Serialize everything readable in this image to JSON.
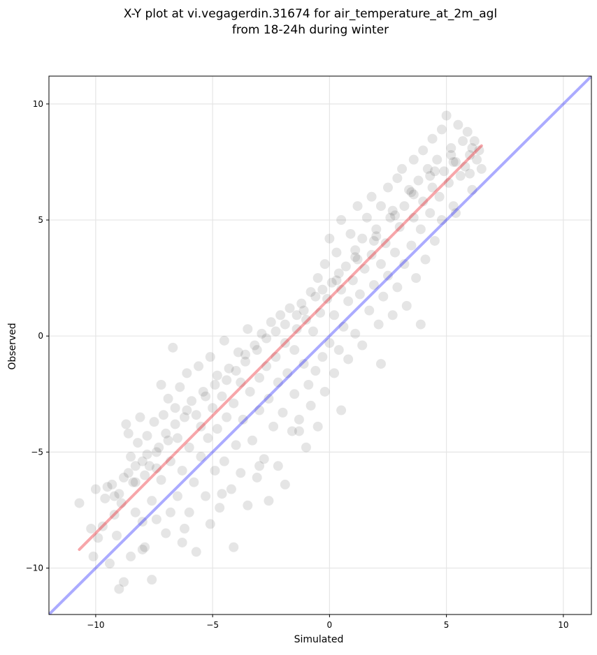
{
  "chart_data": {
    "type": "scatter",
    "title": "X-Y plot at vi.vegagerdin.31674 for air_temperature_at_2m_agl",
    "subtitle": "from 18-24h during winter",
    "xlabel": "Simulated",
    "ylabel": "Observed",
    "xlim": [
      -12,
      11.2
    ],
    "ylim": [
      -12,
      11.2
    ],
    "xticks": [
      -10,
      -5,
      0,
      5,
      10
    ],
    "yticks": [
      -10,
      -5,
      0,
      5,
      10
    ],
    "xtick_labels": [
      "−10",
      "−5",
      "0",
      "5",
      "10"
    ],
    "ytick_labels": [
      "−10",
      "−5",
      "0",
      "5",
      "10"
    ],
    "grid": true,
    "colors": {
      "points": "#000000",
      "identity_line": "#0000ff",
      "fit_line": "#e8000b"
    },
    "series": [
      {
        "type": "scatter",
        "points": [
          [
            -10.7,
            -7.2
          ],
          [
            -10.2,
            -8.3
          ],
          [
            -10.1,
            -9.5
          ],
          [
            -10.0,
            -6.6
          ],
          [
            -9.9,
            -8.7
          ],
          [
            -9.7,
            -8.2
          ],
          [
            -9.5,
            -6.5
          ],
          [
            -9.4,
            -9.8
          ],
          [
            -9.3,
            -6.4
          ],
          [
            -9.2,
            -7.7
          ],
          [
            -9.1,
            -8.6
          ],
          [
            -9.0,
            -6.8
          ],
          [
            -9.0,
            -10.9
          ],
          [
            -8.9,
            -7.2
          ],
          [
            -8.8,
            -6.1
          ],
          [
            -8.8,
            -10.6
          ],
          [
            -8.7,
            -3.8
          ],
          [
            -8.6,
            -4.2
          ],
          [
            -8.5,
            -5.2
          ],
          [
            -8.5,
            -9.5
          ],
          [
            -8.4,
            -6.3
          ],
          [
            -8.3,
            -5.6
          ],
          [
            -8.3,
            -7.6
          ],
          [
            -8.2,
            -4.6
          ],
          [
            -8.1,
            -3.5
          ],
          [
            -8.0,
            -5.4
          ],
          [
            -8.0,
            -8.0
          ],
          [
            -7.9,
            -6.0
          ],
          [
            -7.9,
            -9.1
          ],
          [
            -7.8,
            -4.3
          ],
          [
            -7.7,
            -5.6
          ],
          [
            -7.6,
            -7.1
          ],
          [
            -7.6,
            -10.5
          ],
          [
            -7.5,
            -3.7
          ],
          [
            -7.4,
            -5.0
          ],
          [
            -7.4,
            -7.9
          ],
          [
            -7.3,
            -4.8
          ],
          [
            -7.2,
            -2.1
          ],
          [
            -7.2,
            -6.2
          ],
          [
            -7.1,
            -3.4
          ],
          [
            -7.0,
            -4.2
          ],
          [
            -7.0,
            -8.5
          ],
          [
            -6.9,
            -2.7
          ],
          [
            -6.8,
            -5.4
          ],
          [
            -6.8,
            -7.6
          ],
          [
            -6.7,
            -0.5
          ],
          [
            -6.6,
            -3.1
          ],
          [
            -6.5,
            -4.4
          ],
          [
            -6.5,
            -6.9
          ],
          [
            -6.4,
            -2.2
          ],
          [
            -6.3,
            -5.8
          ],
          [
            -6.3,
            -8.9
          ],
          [
            -6.2,
            -3.5
          ],
          [
            -6.1,
            -1.6
          ],
          [
            -6.0,
            -4.8
          ],
          [
            -6.0,
            -7.6
          ],
          [
            -5.9,
            -2.8
          ],
          [
            -5.8,
            -6.3
          ],
          [
            -5.7,
            -9.3
          ],
          [
            -5.6,
            -1.3
          ],
          [
            -5.5,
            -3.9
          ],
          [
            -5.5,
            -5.2
          ],
          [
            -5.4,
            -2.4
          ],
          [
            -5.3,
            -6.9
          ],
          [
            -5.2,
            -4.4
          ],
          [
            -5.1,
            -0.9
          ],
          [
            -5.1,
            -8.1
          ],
          [
            -5.0,
            -3.1
          ],
          [
            -4.9,
            -5.8
          ],
          [
            -4.8,
            -1.7
          ],
          [
            -4.8,
            -4.0
          ],
          [
            -4.7,
            -7.4
          ],
          [
            -4.6,
            -2.6
          ],
          [
            -4.5,
            -0.2
          ],
          [
            -4.5,
            -5.4
          ],
          [
            -4.4,
            -3.5
          ],
          [
            -4.3,
            -1.4
          ],
          [
            -4.2,
            -6.6
          ],
          [
            -4.1,
            -2.9
          ],
          [
            -4.1,
            -9.1
          ],
          [
            -4.0,
            -4.7
          ],
          [
            -3.9,
            -0.7
          ],
          [
            -3.8,
            -2.0
          ],
          [
            -3.8,
            -5.9
          ],
          [
            -3.7,
            -3.6
          ],
          [
            -3.6,
            -1.1
          ],
          [
            -3.5,
            -7.3
          ],
          [
            -3.5,
            0.3
          ],
          [
            -3.4,
            -2.4
          ],
          [
            -3.3,
            -4.5
          ],
          [
            -3.2,
            -0.4
          ],
          [
            -3.1,
            -6.1
          ],
          [
            -3.0,
            -1.8
          ],
          [
            -3.0,
            -3.2
          ],
          [
            -2.9,
            0.1
          ],
          [
            -2.8,
            -5.3
          ],
          [
            -2.7,
            -1.3
          ],
          [
            -2.6,
            -2.7
          ],
          [
            -2.6,
            -7.1
          ],
          [
            -2.5,
            0.6
          ],
          [
            -2.4,
            -3.9
          ],
          [
            -2.3,
            -0.9
          ],
          [
            -2.2,
            -5.6
          ],
          [
            -2.2,
            -2.0
          ],
          [
            -2.1,
            0.9
          ],
          [
            -2.0,
            -3.3
          ],
          [
            -1.9,
            -0.3
          ],
          [
            -1.9,
            -6.4
          ],
          [
            -1.8,
            -1.6
          ],
          [
            -1.7,
            1.2
          ],
          [
            -1.6,
            -4.1
          ],
          [
            -1.5,
            -0.6
          ],
          [
            -1.5,
            -2.5
          ],
          [
            -1.4,
            0.3
          ],
          [
            -1.3,
            -3.6
          ],
          [
            -1.2,
            1.4
          ],
          [
            -1.1,
            -1.2
          ],
          [
            -1.0,
            -4.8
          ],
          [
            -1.0,
            0.7
          ],
          [
            -0.9,
            -2.1
          ],
          [
            -0.8,
            1.9
          ],
          [
            -0.8,
            -3.0
          ],
          [
            -0.7,
            0.2
          ],
          [
            -0.6,
            -1.5
          ],
          [
            -0.5,
            2.5
          ],
          [
            -0.5,
            -3.9
          ],
          [
            -0.4,
            1.0
          ],
          [
            -0.3,
            -0.9
          ],
          [
            -0.2,
            3.1
          ],
          [
            -0.2,
            -2.4
          ],
          [
            -0.1,
            1.6
          ],
          [
            0.0,
            -0.3
          ],
          [
            0.0,
            4.2
          ],
          [
            0.1,
            2.3
          ],
          [
            0.2,
            -1.6
          ],
          [
            0.2,
            0.9
          ],
          [
            0.3,
            3.6
          ],
          [
            0.4,
            -0.6
          ],
          [
            0.5,
            2.0
          ],
          [
            0.5,
            5.0
          ],
          [
            0.6,
            0.4
          ],
          [
            0.7,
            3.0
          ],
          [
            0.8,
            -1.0
          ],
          [
            0.8,
            1.5
          ],
          [
            0.9,
            4.4
          ],
          [
            1.0,
            2.4
          ],
          [
            1.1,
            0.1
          ],
          [
            1.1,
            3.7
          ],
          [
            1.2,
            5.6
          ],
          [
            1.3,
            1.8
          ],
          [
            1.4,
            4.2
          ],
          [
            1.4,
            -0.4
          ],
          [
            1.5,
            2.9
          ],
          [
            1.6,
            5.1
          ],
          [
            1.7,
            1.1
          ],
          [
            1.8,
            3.5
          ],
          [
            1.8,
            6.0
          ],
          [
            1.9,
            2.2
          ],
          [
            2.0,
            4.6
          ],
          [
            2.1,
            0.5
          ],
          [
            2.2,
            3.1
          ],
          [
            2.2,
            5.6
          ],
          [
            2.3,
            1.7
          ],
          [
            2.4,
            4.0
          ],
          [
            2.5,
            6.4
          ],
          [
            2.5,
            2.6
          ],
          [
            2.6,
            5.1
          ],
          [
            2.7,
            0.9
          ],
          [
            2.8,
            3.6
          ],
          [
            2.9,
            6.8
          ],
          [
            2.9,
            2.1
          ],
          [
            3.0,
            4.7
          ],
          [
            3.1,
            7.2
          ],
          [
            3.2,
            3.1
          ],
          [
            3.2,
            5.6
          ],
          [
            3.3,
            1.3
          ],
          [
            3.4,
            6.3
          ],
          [
            3.5,
            3.9
          ],
          [
            3.6,
            7.6
          ],
          [
            3.6,
            5.1
          ],
          [
            3.7,
            2.5
          ],
          [
            3.8,
            6.7
          ],
          [
            3.9,
            4.6
          ],
          [
            4.0,
            8.0
          ],
          [
            4.0,
            5.8
          ],
          [
            4.1,
            3.3
          ],
          [
            4.2,
            7.2
          ],
          [
            4.3,
            5.3
          ],
          [
            4.4,
            8.5
          ],
          [
            4.4,
            6.4
          ],
          [
            4.5,
            4.1
          ],
          [
            4.6,
            7.6
          ],
          [
            4.7,
            6.0
          ],
          [
            4.8,
            8.9
          ],
          [
            4.8,
            5.0
          ],
          [
            4.9,
            7.1
          ],
          [
            5.0,
            9.5
          ],
          [
            5.1,
            6.6
          ],
          [
            5.2,
            8.1
          ],
          [
            5.3,
            5.6
          ],
          [
            5.4,
            7.5
          ],
          [
            5.5,
            9.1
          ],
          [
            5.6,
            6.9
          ],
          [
            5.7,
            8.4
          ],
          [
            5.8,
            7.3
          ],
          [
            5.9,
            8.8
          ],
          [
            6.0,
            7.8
          ],
          [
            6.1,
            6.3
          ],
          [
            6.2,
            8.4
          ],
          [
            6.3,
            7.6
          ],
          [
            6.4,
            8.0
          ],
          [
            6.5,
            7.2
          ],
          [
            -9.6,
            -7.0
          ],
          [
            -8.6,
            -5.9
          ],
          [
            -7.8,
            -5.1
          ],
          [
            -6.9,
            -4.5
          ],
          [
            -6.1,
            -3.2
          ],
          [
            -5.3,
            -2.6
          ],
          [
            -4.4,
            -1.9
          ],
          [
            -3.6,
            -0.8
          ],
          [
            -2.7,
            -0.1
          ],
          [
            -1.9,
            0.5
          ],
          [
            -1.1,
            1.1
          ],
          [
            -0.3,
            2.0
          ],
          [
            0.4,
            2.7
          ],
          [
            1.2,
            3.3
          ],
          [
            2.0,
            4.3
          ],
          [
            2.8,
            5.2
          ],
          [
            3.6,
            6.1
          ],
          [
            4.5,
            7.1
          ],
          [
            5.3,
            7.5
          ],
          [
            6.1,
            8.1
          ],
          [
            -9.2,
            -6.9
          ],
          [
            -8.3,
            -6.3
          ],
          [
            -7.4,
            -5.7
          ],
          [
            -6.6,
            -3.8
          ],
          [
            -5.7,
            -3.4
          ],
          [
            -4.9,
            -2.1
          ],
          [
            -4.0,
            -1.5
          ],
          [
            -3.1,
            -0.6
          ],
          [
            -2.3,
            0.2
          ],
          [
            -1.4,
            0.9
          ],
          [
            -0.6,
            1.7
          ],
          [
            0.3,
            2.4
          ],
          [
            1.1,
            3.4
          ],
          [
            1.9,
            4.1
          ],
          [
            2.7,
            5.4
          ],
          [
            3.5,
            6.2
          ],
          [
            4.3,
            6.9
          ],
          [
            5.2,
            7.8
          ],
          [
            6.0,
            7.0
          ],
          [
            -8.0,
            -9.2
          ],
          [
            -6.2,
            -8.3
          ],
          [
            -4.6,
            -6.8
          ],
          [
            -3.0,
            -5.6
          ],
          [
            -1.3,
            -4.1
          ],
          [
            0.5,
            -3.2
          ],
          [
            2.2,
            -1.2
          ],
          [
            3.9,
            0.5
          ],
          [
            5.4,
            5.3
          ]
        ]
      }
    ],
    "lines": [
      {
        "kind": "identity",
        "color": "#0000ff",
        "x": [
          -12,
          11.2
        ],
        "y": [
          -12,
          11.2
        ]
      },
      {
        "kind": "fit",
        "color": "#e8000b",
        "x": [
          -10.7,
          6.5
        ],
        "y": [
          -9.2,
          8.2
        ]
      }
    ]
  }
}
